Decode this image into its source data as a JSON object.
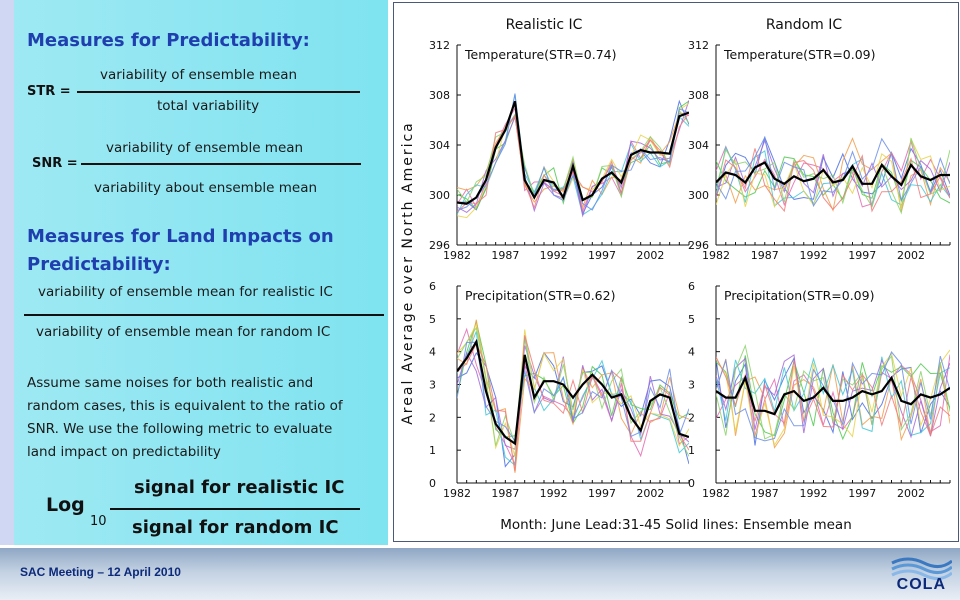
{
  "left": {
    "heading1": "Measures for Predictability:",
    "str_label": "STR =",
    "str_numerator": "variability of ensemble mean",
    "str_denominator": "total variability",
    "snr_label": "SNR =",
    "snr_numerator": "variability of ensemble mean",
    "snr_denominator": "variability about ensemble mean",
    "heading2_line1": "Measures for Land Impacts on",
    "heading2_line2": "Predictability:",
    "land_numerator": "variability of ensemble mean for realistic IC",
    "land_denominator": "variability of ensemble mean for random IC",
    "para_lines": [
      "Assume same noises for both realistic and",
      "random cases, this is equivalent to the ratio of",
      "SNR. We use the following metric to evaluate",
      "land impact on predictability"
    ],
    "log_label": "Log",
    "log_base": "10",
    "log_numerator": "signal for realistic IC",
    "log_denominator": "signal for random IC"
  },
  "footer": {
    "meeting": "SAC Meeting – 12 April 2010",
    "logo": "COLA"
  },
  "figure": {
    "col_titles": [
      "Realistic IC",
      "Random IC"
    ],
    "y_axis_label": "Areal Average over North America",
    "caption": "Month: June   Lead:31-45   Solid lines: Ensemble mean"
  },
  "colors": {
    "ensemble_mean": "#000000",
    "members": [
      "#4a6fe3",
      "#e06bb0",
      "#4fc94f",
      "#f29c4a",
      "#3fc7d6",
      "#a469d6",
      "#e8d24a",
      "#8bd26a",
      "#f07a7a",
      "#6a8de8"
    ]
  },
  "chart_data": [
    {
      "type": "line",
      "title": "Temperature(STR=0.74)",
      "column": "Realistic IC",
      "x": [
        1982,
        1983,
        1984,
        1985,
        1986,
        1987,
        1988,
        1989,
        1990,
        1991,
        1992,
        1993,
        1994,
        1995,
        1996,
        1997,
        1998,
        1999,
        2000,
        2001,
        2002,
        2003,
        2004,
        2005,
        2006
      ],
      "ylim": [
        296,
        312
      ],
      "yticks": [
        296,
        300,
        304,
        308,
        312
      ],
      "xticks": [
        1982,
        1987,
        1992,
        1997,
        2002
      ],
      "series": [
        {
          "name": "Ensemble mean",
          "values": [
            299.4,
            299.3,
            299.8,
            301.2,
            303.8,
            305.2,
            307.5,
            301.2,
            299.8,
            301.2,
            301.0,
            299.8,
            302.3,
            299.6,
            300.0,
            301.3,
            301.8,
            301.0,
            303.2,
            303.6,
            303.4,
            303.4,
            303.3,
            306.3,
            306.6
          ]
        }
      ]
    },
    {
      "type": "line",
      "title": "Temperature(STR=0.09)",
      "column": "Random IC",
      "x": [
        1982,
        1983,
        1984,
        1985,
        1986,
        1987,
        1988,
        1989,
        1990,
        1991,
        1992,
        1993,
        1994,
        1995,
        1996,
        1997,
        1998,
        1999,
        2000,
        2001,
        2002,
        2003,
        2004,
        2005,
        2006
      ],
      "ylim": [
        296,
        312
      ],
      "yticks": [
        296,
        300,
        304,
        308,
        312
      ],
      "xticks": [
        1982,
        1987,
        1992,
        1997,
        2002
      ],
      "series": [
        {
          "name": "Ensemble mean",
          "values": [
            301.0,
            301.8,
            301.6,
            301.0,
            302.2,
            302.6,
            301.3,
            300.9,
            301.5,
            301.1,
            301.3,
            302.0,
            301.0,
            301.2,
            302.3,
            300.9,
            300.9,
            302.4,
            301.5,
            300.8,
            302.4,
            301.5,
            301.2,
            301.6,
            301.6
          ]
        }
      ]
    },
    {
      "type": "line",
      "title": "Precipitation(STR=0.62)",
      "column": "Realistic IC",
      "x": [
        1982,
        1983,
        1984,
        1985,
        1986,
        1987,
        1988,
        1989,
        1990,
        1991,
        1992,
        1993,
        1994,
        1995,
        1996,
        1997,
        1998,
        1999,
        2000,
        2001,
        2002,
        2003,
        2004,
        2005,
        2006
      ],
      "ylim": [
        0,
        6
      ],
      "yticks": [
        0,
        1,
        2,
        3,
        4,
        5,
        6
      ],
      "xticks": [
        1982,
        1987,
        1992,
        1997,
        2002
      ],
      "series": [
        {
          "name": "Ensemble mean",
          "values": [
            3.4,
            3.8,
            4.3,
            2.8,
            1.8,
            1.4,
            1.2,
            3.9,
            2.6,
            3.1,
            3.1,
            3.0,
            2.6,
            3.0,
            3.3,
            3.0,
            2.6,
            2.7,
            2.0,
            1.6,
            2.5,
            2.7,
            2.6,
            1.5,
            1.4
          ]
        }
      ]
    },
    {
      "type": "line",
      "title": "Precipitation(STR=0.09)",
      "column": "Random IC",
      "x": [
        1982,
        1983,
        1984,
        1985,
        1986,
        1987,
        1988,
        1989,
        1990,
        1991,
        1992,
        1993,
        1994,
        1995,
        1996,
        1997,
        1998,
        1999,
        2000,
        2001,
        2002,
        2003,
        2004,
        2005,
        2006
      ],
      "ylim": [
        0,
        6
      ],
      "yticks": [
        0,
        1,
        2,
        3,
        4,
        5,
        6
      ],
      "xticks": [
        1982,
        1987,
        1992,
        1997,
        2002
      ],
      "series": [
        {
          "name": "Ensemble mean",
          "values": [
            2.8,
            2.6,
            2.6,
            3.2,
            2.2,
            2.2,
            2.1,
            2.7,
            2.8,
            2.5,
            2.6,
            2.9,
            2.5,
            2.5,
            2.6,
            2.8,
            2.7,
            2.8,
            3.2,
            2.5,
            2.4,
            2.7,
            2.6,
            2.7,
            2.9
          ]
        }
      ]
    }
  ]
}
